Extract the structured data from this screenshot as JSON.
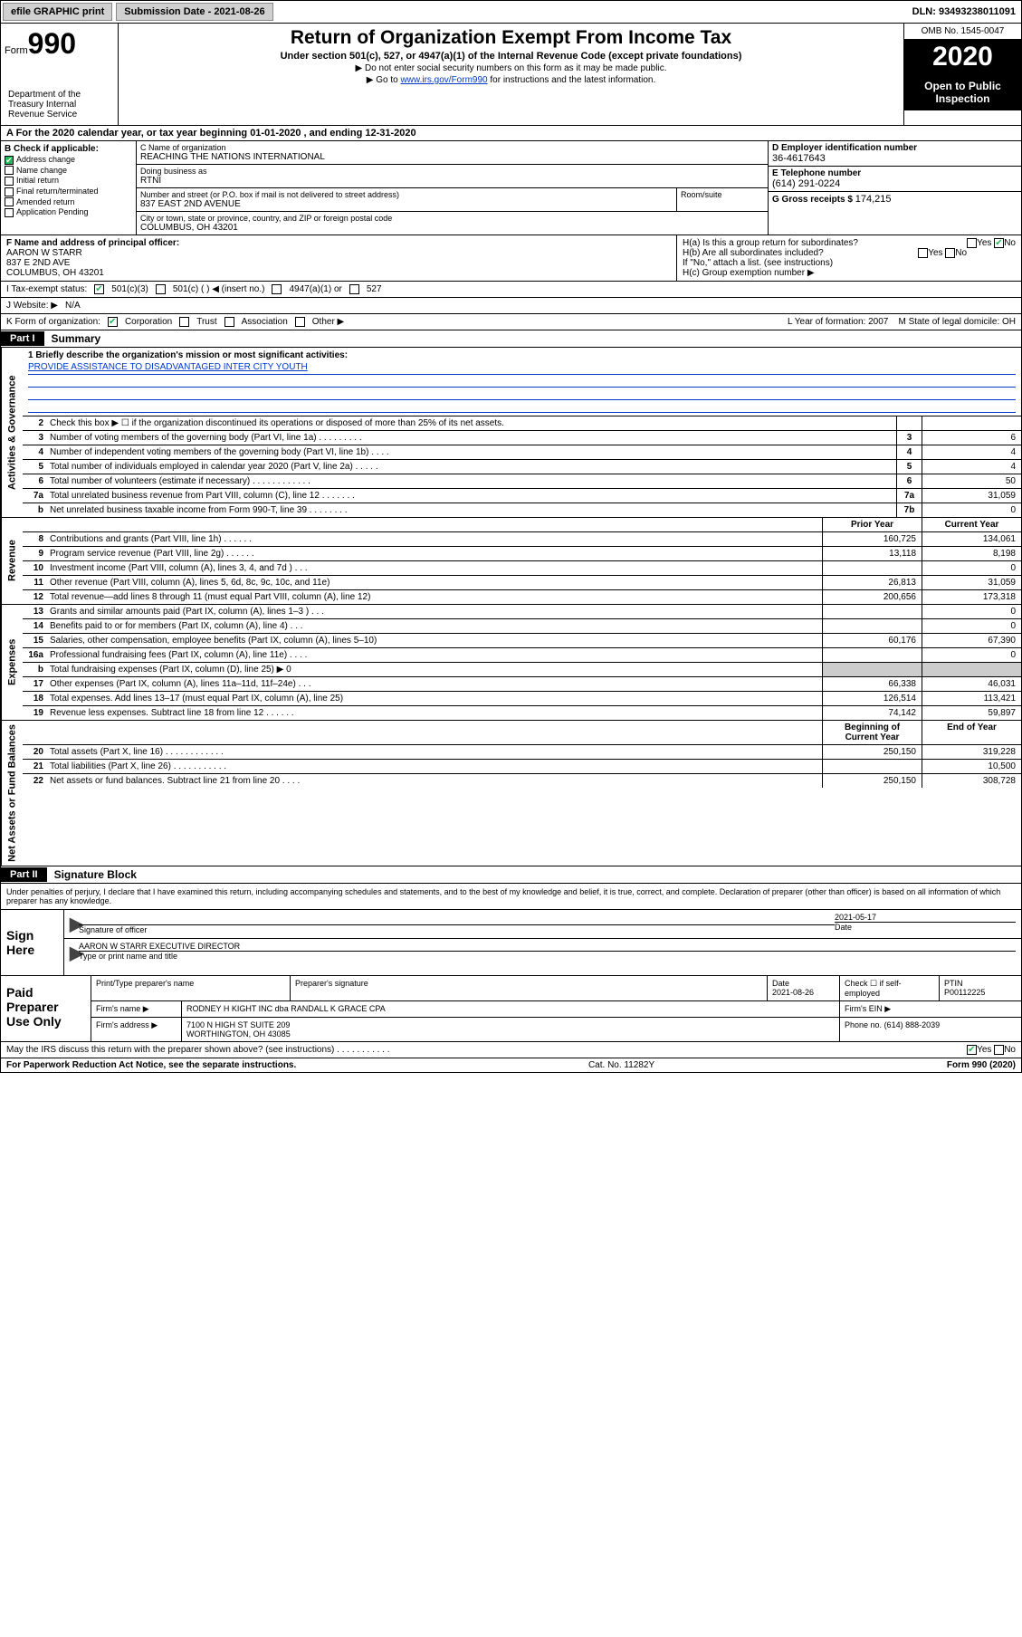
{
  "topbar": {
    "efile": "efile GRAPHIC print",
    "sub_label": "Submission Date - 2021-08-26",
    "dln": "DLN: 93493238011091"
  },
  "header": {
    "form_prefix": "Form",
    "form_num": "990",
    "dept": "Department of the Treasury Internal Revenue Service",
    "title": "Return of Organization Exempt From Income Tax",
    "sub": "Under section 501(c), 527, or 4947(a)(1) of the Internal Revenue Code (except private foundations)",
    "note1": "▶ Do not enter social security numbers on this form as it may be made public.",
    "note2_pre": "▶ Go to ",
    "note2_link": "www.irs.gov/Form990",
    "note2_post": " for instructions and the latest information.",
    "omb": "OMB No. 1545-0047",
    "year": "2020",
    "open": "Open to Public Inspection"
  },
  "rowA": "A For the 2020 calendar year, or tax year beginning 01-01-2020 , and ending 12-31-2020",
  "secB": {
    "label": "B Check if applicable:",
    "items": [
      {
        "t": "Address change",
        "ck": true
      },
      {
        "t": "Name change",
        "ck": false
      },
      {
        "t": "Initial return",
        "ck": false
      },
      {
        "t": "Final return/terminated",
        "ck": false
      },
      {
        "t": "Amended return",
        "ck": false
      },
      {
        "t": "Application Pending",
        "ck": false
      }
    ]
  },
  "secC": {
    "name_lbl": "C Name of organization",
    "name": "REACHING THE NATIONS INTERNATIONAL",
    "dba_lbl": "Doing business as",
    "dba": "RTNI",
    "addr_lbl": "Number and street (or P.O. box if mail is not delivered to street address)",
    "addr": "837 EAST 2ND AVENUE",
    "room_lbl": "Room/suite",
    "city_lbl": "City or town, state or province, country, and ZIP or foreign postal code",
    "city": "COLUMBUS, OH  43201"
  },
  "secD": {
    "lbl": "D Employer identification number",
    "val": "36-4617643"
  },
  "secE": {
    "lbl": "E Telephone number",
    "val": "(614) 291-0224"
  },
  "secG": {
    "lbl": "G Gross receipts $",
    "val": "174,215"
  },
  "secF": {
    "lbl": "F Name and address of principal officer:",
    "name": "AARON W STARR",
    "addr1": "837 E 2ND AVE",
    "addr2": "COLUMBUS, OH  43201"
  },
  "secH": {
    "a": "H(a) Is this a group return for subordinates?",
    "b": "H(b) Are all subordinates included?",
    "b_note": "If \"No,\" attach a list. (see instructions)",
    "c": "H(c) Group exemption number ▶"
  },
  "rowI": {
    "lbl": "I  Tax-exempt status:",
    "o1": "501(c)(3)",
    "o2": "501(c) (  ) ◀ (insert no.)",
    "o3": "4947(a)(1) or",
    "o4": "527"
  },
  "rowJ": {
    "lbl": "J  Website: ▶",
    "val": "N/A"
  },
  "rowK": {
    "lbl": "K Form of organization:",
    "o1": "Corporation",
    "o2": "Trust",
    "o3": "Association",
    "o4": "Other ▶",
    "l_lbl": "L Year of formation:",
    "l_val": "2007",
    "m_lbl": "M State of legal domicile:",
    "m_val": "OH"
  },
  "part1": {
    "tag": "Part I",
    "title": "Summary"
  },
  "mission": {
    "lbl": "1  Briefly describe the organization's mission or most significant activities:",
    "text": "PROVIDE ASSISTANCE TO DISADVANTAGED INTER CITY YOUTH"
  },
  "gov_rows": [
    {
      "n": "2",
      "d": "Check this box ▶ ☐  if the organization discontinued its operations or disposed of more than 25% of its net assets.",
      "b": "",
      "v": ""
    },
    {
      "n": "3",
      "d": "Number of voting members of the governing body (Part VI, line 1a)  .  .  .  .  .  .  .  .  .",
      "b": "3",
      "v": "6"
    },
    {
      "n": "4",
      "d": "Number of independent voting members of the governing body (Part VI, line 1b)  .  .  .  .",
      "b": "4",
      "v": "4"
    },
    {
      "n": "5",
      "d": "Total number of individuals employed in calendar year 2020 (Part V, line 2a)  .  .  .  .  .",
      "b": "5",
      "v": "4"
    },
    {
      "n": "6",
      "d": "Total number of volunteers (estimate if necessary)  .  .  .  .  .  .  .  .  .  .  .  .",
      "b": "6",
      "v": "50"
    },
    {
      "n": "7a",
      "d": "Total unrelated business revenue from Part VIII, column (C), line 12  .  .  .  .  .  .  .",
      "b": "7a",
      "v": "31,059"
    },
    {
      "n": "b",
      "d": "Net unrelated business taxable income from Form 990-T, line 39  .  .  .  .  .  .  .  .",
      "b": "7b",
      "v": "0"
    }
  ],
  "two_col_hdr": {
    "py": "Prior Year",
    "cy": "Current Year"
  },
  "rev_rows": [
    {
      "n": "8",
      "d": "Contributions and grants (Part VIII, line 1h)  .  .  .  .  .  .",
      "py": "160,725",
      "cy": "134,061"
    },
    {
      "n": "9",
      "d": "Program service revenue (Part VIII, line 2g)  .  .  .  .  .  .",
      "py": "13,118",
      "cy": "8,198"
    },
    {
      "n": "10",
      "d": "Investment income (Part VIII, column (A), lines 3, 4, and 7d )  .  .  .",
      "py": "",
      "cy": "0"
    },
    {
      "n": "11",
      "d": "Other revenue (Part VIII, column (A), lines 5, 6d, 8c, 9c, 10c, and 11e)",
      "py": "26,813",
      "cy": "31,059"
    },
    {
      "n": "12",
      "d": "Total revenue—add lines 8 through 11 (must equal Part VIII, column (A), line 12)",
      "py": "200,656",
      "cy": "173,318"
    }
  ],
  "exp_rows": [
    {
      "n": "13",
      "d": "Grants and similar amounts paid (Part IX, column (A), lines 1–3 )  .  .  .",
      "py": "",
      "cy": "0"
    },
    {
      "n": "14",
      "d": "Benefits paid to or for members (Part IX, column (A), line 4)  .  .  .",
      "py": "",
      "cy": "0"
    },
    {
      "n": "15",
      "d": "Salaries, other compensation, employee benefits (Part IX, column (A), lines 5–10)",
      "py": "60,176",
      "cy": "67,390"
    },
    {
      "n": "16a",
      "d": "Professional fundraising fees (Part IX, column (A), line 11e)  .  .  .  .",
      "py": "",
      "cy": "0"
    },
    {
      "n": "b",
      "d": "Total fundraising expenses (Part IX, column (D), line 25) ▶ 0",
      "py": "shade",
      "cy": "shade"
    },
    {
      "n": "17",
      "d": "Other expenses (Part IX, column (A), lines 11a–11d, 11f–24e)  .  .  .",
      "py": "66,338",
      "cy": "46,031"
    },
    {
      "n": "18",
      "d": "Total expenses. Add lines 13–17 (must equal Part IX, column (A), line 25)",
      "py": "126,514",
      "cy": "113,421"
    },
    {
      "n": "19",
      "d": "Revenue less expenses. Subtract line 18 from line 12  .  .  .  .  .  .",
      "py": "74,142",
      "cy": "59,897"
    }
  ],
  "na_hdr": {
    "py": "Beginning of Current Year",
    "cy": "End of Year"
  },
  "na_rows": [
    {
      "n": "20",
      "d": "Total assets (Part X, line 16)  .  .  .  .  .  .  .  .  .  .  .  .",
      "py": "250,150",
      "cy": "319,228"
    },
    {
      "n": "21",
      "d": "Total liabilities (Part X, line 26)  .  .  .  .  .  .  .  .  .  .  .",
      "py": "",
      "cy": "10,500"
    },
    {
      "n": "22",
      "d": "Net assets or fund balances. Subtract line 21 from line 20  .  .  .  .",
      "py": "250,150",
      "cy": "308,728"
    }
  ],
  "part2": {
    "tag": "Part II",
    "title": "Signature Block"
  },
  "penalties": "Under penalties of perjury, I declare that I have examined this return, including accompanying schedules and statements, and to the best of my knowledge and belief, it is true, correct, and complete. Declaration of preparer (other than officer) is based on all information of which preparer has any knowledge.",
  "sign": {
    "here": "Sign Here",
    "sig_lbl": "Signature of officer",
    "date": "2021-05-17",
    "date_lbl": "Date",
    "name": "AARON W STARR  EXECUTIVE DIRECTOR",
    "name_lbl": "Type or print name and title"
  },
  "paid": {
    "title": "Paid Preparer Use Only",
    "h1": "Print/Type preparer's name",
    "h2": "Preparer's signature",
    "h3": "Date",
    "h3v": "2021-08-26",
    "h4": "Check ☐ if self-employed",
    "h5": "PTIN",
    "h5v": "P00112225",
    "firm_lbl": "Firm's name  ▶",
    "firm": "RODNEY H KIGHT INC dba RANDALL K GRACE CPA",
    "ein_lbl": "Firm's EIN ▶",
    "addr_lbl": "Firm's address ▶",
    "addr1": "7100 N HIGH ST SUITE 209",
    "addr2": "WORTHINGTON, OH  43085",
    "phone_lbl": "Phone no.",
    "phone": "(614) 888-2039"
  },
  "discuss": "May the IRS discuss this return with the preparer shown above? (see instructions)  .  .  .  .  .  .  .  .  .  .  .",
  "footer": {
    "l": "For Paperwork Reduction Act Notice, see the separate instructions.",
    "c": "Cat. No. 11282Y",
    "r": "Form 990 (2020)"
  },
  "labels": {
    "side_gov": "Activities & Governance",
    "side_rev": "Revenue",
    "side_exp": "Expenses",
    "side_na": "Net Assets or Fund Balances",
    "yes": "Yes",
    "no": "No"
  }
}
